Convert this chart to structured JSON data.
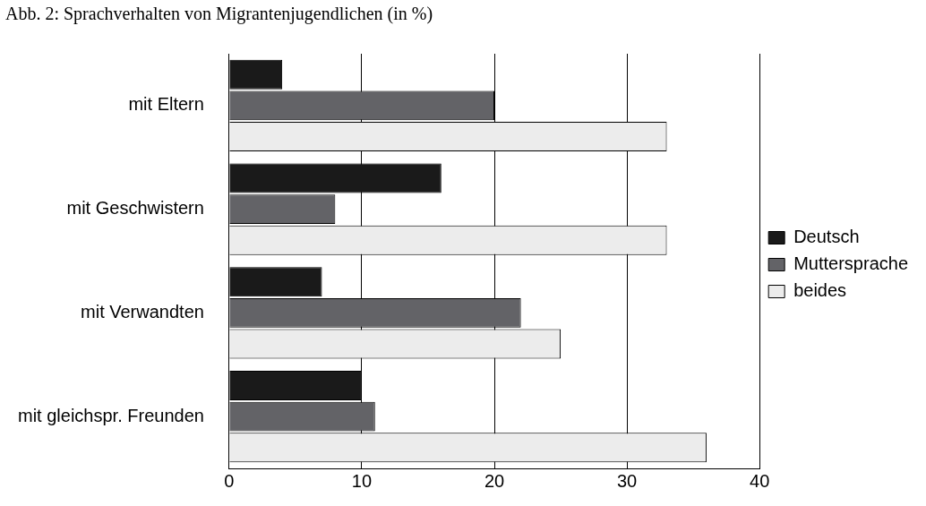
{
  "chart_data": {
    "type": "bar",
    "orientation": "horizontal",
    "title": "Abb. 2: Sprachverhalten von Migrantenjugendlichen (in %)",
    "categories": [
      "mit Eltern",
      "mit Geschwistern",
      "mit Verwandten",
      "mit gleichspr. Freunden"
    ],
    "series": [
      {
        "name": "Deutsch",
        "color": "#1a1a1a",
        "values": [
          4,
          16,
          7,
          10
        ]
      },
      {
        "name": "Muttersprache",
        "color": "#636367",
        "values": [
          20,
          8,
          22,
          11
        ]
      },
      {
        "name": "beides",
        "color": "#ececec",
        "values": [
          33,
          33,
          25,
          36
        ]
      }
    ],
    "xlim": [
      0,
      40
    ],
    "xticks": [
      0,
      10,
      20,
      30,
      40
    ],
    "grid": "x",
    "legend": "right"
  }
}
